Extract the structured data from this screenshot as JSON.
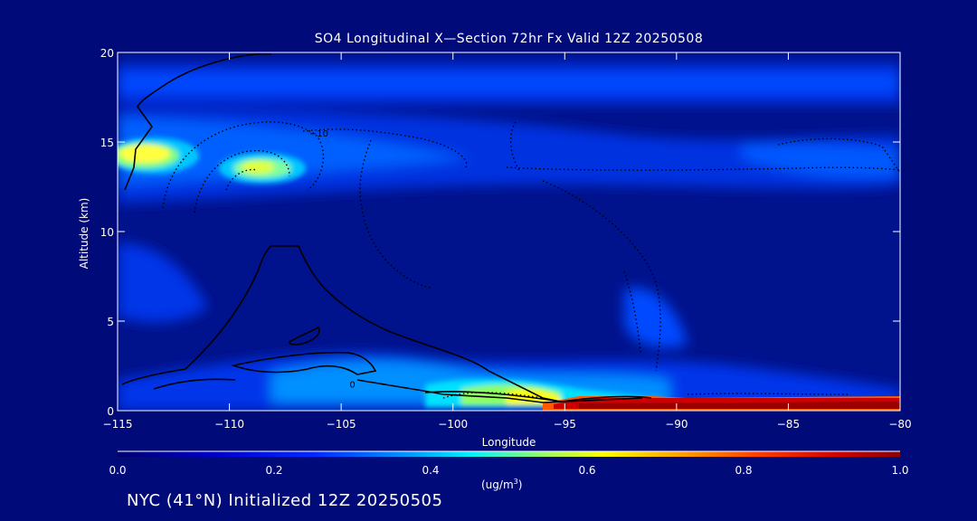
{
  "chart_data": {
    "type": "heatmap",
    "title": "SO4 Longitudinal X—Section 72hr  Fx Valid 12Z 20250508",
    "xlabel": "Longitude",
    "ylabel": "Altitude (km)",
    "xlim": [
      -115,
      -80
    ],
    "ylim": [
      0,
      20
    ],
    "x_ticks": [
      -115,
      -110,
      -105,
      -100,
      -95,
      -90,
      -85,
      -80
    ],
    "x_tick_labels": [
      "−115",
      "−110",
      "−105",
      "−100",
      "−95",
      "−90",
      "−85",
      "−80"
    ],
    "y_ticks": [
      0,
      5,
      10,
      15,
      20
    ],
    "y_tick_labels": [
      "0",
      "5",
      "10",
      "15",
      "20"
    ],
    "colorbar": {
      "min": 0.0,
      "max": 1.0,
      "ticks": [
        0.0,
        0.2,
        0.4,
        0.6,
        0.8,
        1.0
      ],
      "tick_labels": [
        "0.0",
        "0.2",
        "0.4",
        "0.6",
        "0.8",
        "1.0"
      ],
      "unit": "(ug/m",
      "unit_sup": "3",
      "unit_close": ")"
    },
    "field_regions": [
      {
        "name": "upper-layer",
        "lon": [
          -115,
          -80
        ],
        "alt": [
          16.8,
          19.4
        ],
        "value": 0.15
      },
      {
        "name": "layer-15km",
        "lon": [
          -115,
          -80
        ],
        "alt": [
          12.3,
          16.5
        ],
        "value": 0.22
      },
      {
        "name": "core-west-15km",
        "lon": [
          -115,
          -111
        ],
        "alt": [
          13.3,
          15.1
        ],
        "value": 0.55
      },
      {
        "name": "core-108-14km",
        "lon": [
          -110,
          -106.5
        ],
        "alt": [
          12.9,
          14.3
        ],
        "value": 0.45
      },
      {
        "name": "mid-west-band",
        "lon": [
          -115,
          -110
        ],
        "alt": [
          5,
          9.5
        ],
        "value": 0.12
      },
      {
        "name": "low-plume",
        "lon": [
          -106,
          -91
        ],
        "alt": [
          0.3,
          2.5
        ],
        "value": 0.45
      },
      {
        "name": "low-core",
        "lon": [
          -98,
          -94
        ],
        "alt": [
          0.3,
          1.8
        ],
        "value": 0.62
      },
      {
        "name": "surface-max",
        "lon": [
          -95,
          -80
        ],
        "alt": [
          0,
          0.9
        ],
        "value": 0.98
      }
    ],
    "contour_labels": [
      {
        "text": "−10",
        "lon": -106,
        "alt": 15.5
      },
      {
        "text": "0",
        "lon": -104.5,
        "alt": 1.5
      }
    ],
    "colors": {
      "background": "#000a78",
      "colormap": [
        "#00008c",
        "#0000ff",
        "#00a0ff",
        "#00ffff",
        "#ffff00",
        "#ff8000",
        "#ff0000",
        "#8c0000"
      ]
    }
  },
  "footer": {
    "text": "NYC (41°N) Initialized 12Z 20250505"
  }
}
